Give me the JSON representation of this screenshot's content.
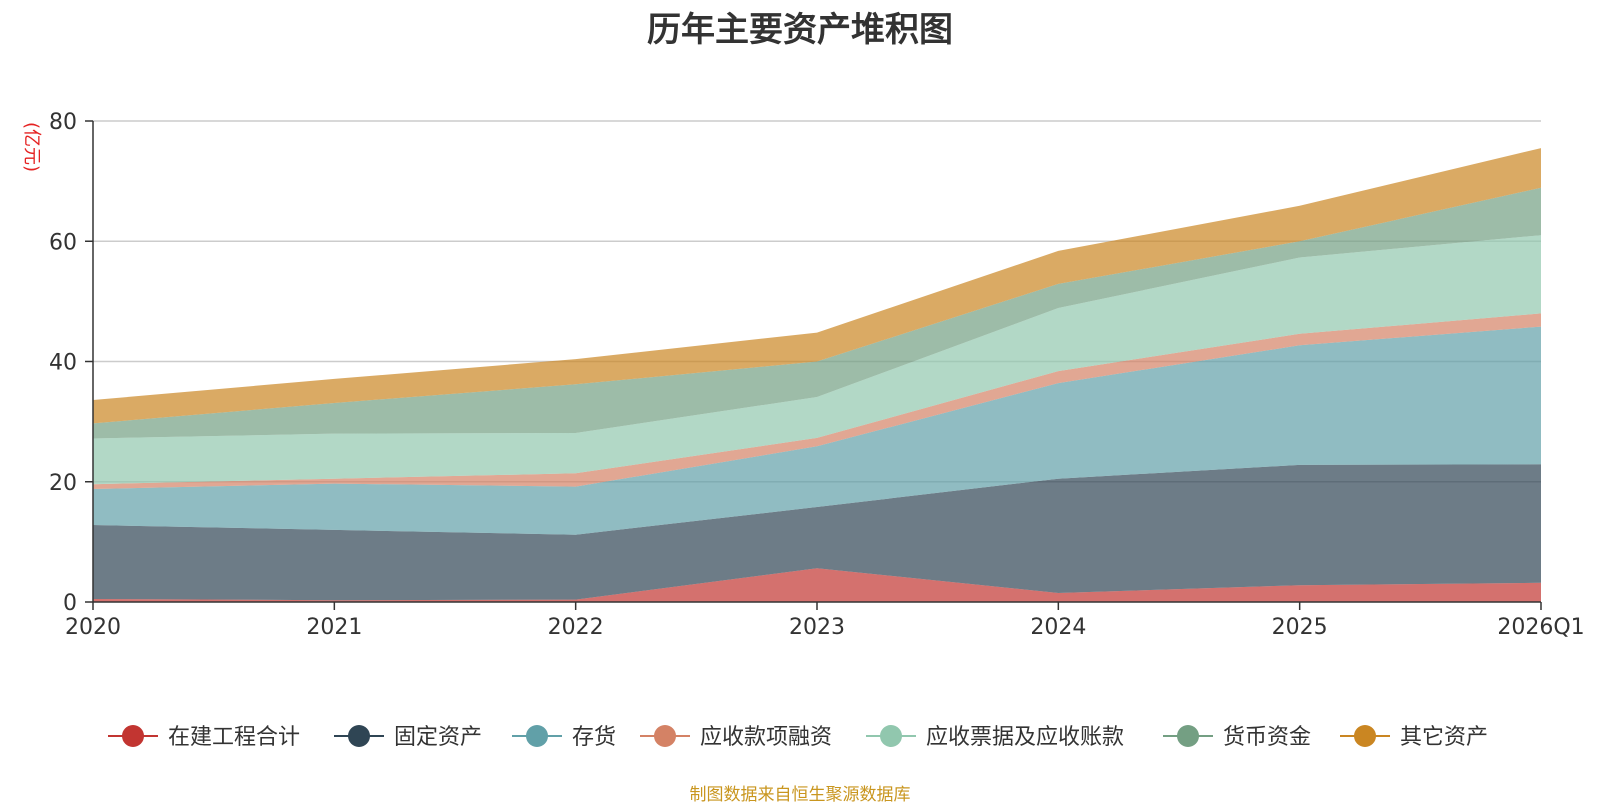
{
  "chart_data": {
    "type": "area",
    "stacked": true,
    "title": "历年主要资产堆积图",
    "ylabel": "(亿元)",
    "xlabel": "",
    "ylim": [
      0,
      80
    ],
    "yticks": [
      0,
      20,
      40,
      60,
      80
    ],
    "grid": true,
    "legend_position": "bottom",
    "categories": [
      "2020",
      "2021",
      "2022",
      "2023",
      "2024",
      "2025",
      "2026Q1"
    ],
    "series": [
      {
        "name": "在建工程合计",
        "color": "#c23531",
        "values": [
          0.5,
          0.3,
          0.4,
          5.6,
          1.5,
          2.8,
          3.2
        ]
      },
      {
        "name": "固定资产",
        "color": "#2f4554",
        "values": [
          12.3,
          11.7,
          10.8,
          10.2,
          19.0,
          20.0,
          19.7
        ]
      },
      {
        "name": "存货",
        "color": "#61a0a8",
        "values": [
          6.0,
          7.7,
          8.0,
          10.1,
          15.9,
          19.9,
          22.9
        ]
      },
      {
        "name": "应收款项融资",
        "color": "#d48265",
        "values": [
          0.8,
          0.8,
          2.2,
          1.4,
          2.0,
          1.9,
          2.2
        ]
      },
      {
        "name": "应收票据及应收账款",
        "color": "#91c7ae",
        "values": [
          7.6,
          7.5,
          6.7,
          6.8,
          10.5,
          12.7,
          13.0
        ]
      },
      {
        "name": "货币资金",
        "color": "#749f83",
        "values": [
          2.5,
          5.1,
          8.1,
          5.9,
          4.0,
          2.7,
          7.9
        ]
      },
      {
        "name": "其它资产",
        "color": "#ca8622",
        "values": [
          3.9,
          4.0,
          4.2,
          4.8,
          5.5,
          5.9,
          6.6
        ]
      }
    ]
  },
  "source_note": "制图数据来自恒生聚源数据库"
}
